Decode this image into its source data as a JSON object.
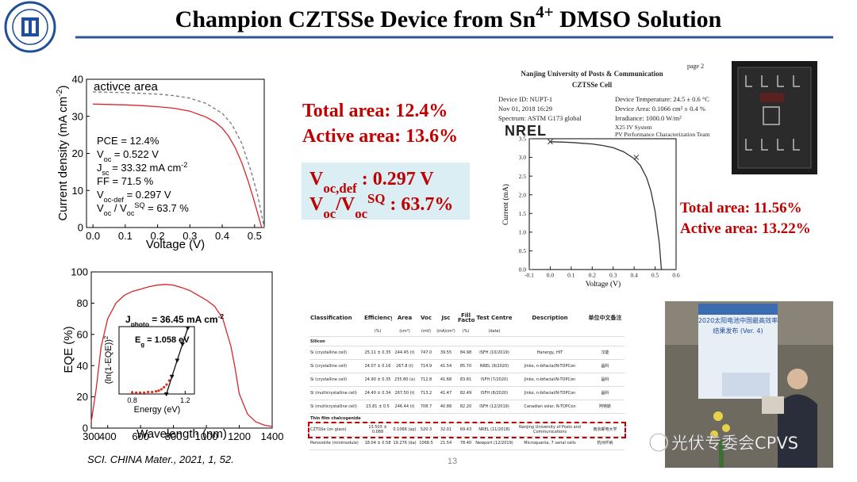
{
  "slide": {
    "title": [
      {
        "text": "Champion CZTSSe Device from Sn"
      },
      {
        "sup": "4+"
      },
      {
        "text": " DMSO Solution"
      }
    ],
    "total_area": "Total area: 12.4%",
    "active_area": "Active area: 13.6%",
    "voc_box": [
      [
        {
          "text": "V"
        },
        {
          "sub": "oc,def"
        },
        {
          "text": " :  0.297 V"
        }
      ],
      [
        {
          "text": "V"
        },
        {
          "sub": "oc"
        },
        {
          "text": "/V"
        },
        {
          "sub": "oc"
        },
        {
          "sup": "SQ"
        },
        {
          "text": " : 63.7%"
        }
      ]
    ],
    "right_results": [
      "Total area: 11.56%",
      "Active area: 13.22%"
    ],
    "nrel_header": {
      "page": "page 2",
      "institution": "Nanjing University of Posts & Communication",
      "cell": "CZTSSe Cell",
      "left": [
        "Device ID: NUPT-1",
        "Nov 01, 2018 16:29",
        "Spectrum: ASTM G173 global"
      ],
      "right": [
        "Device Temperature: 24.5 ± 0.6 °C",
        "Device Area: 0.1066 cm² ± 0.4 %",
        "Irradiance: 1000.0 W/m²"
      ],
      "logo": "NREL",
      "system": [
        "X25 IV System",
        "PV Performance Characterization Team"
      ]
    },
    "photo_screen": [
      "2020太阳电池中国最高效率",
      "结果发布 (Ver. 4)"
    ],
    "citation": "SCI. CHINA Mater., 2021, 1, 52.",
    "page_number": "13",
    "watermark": "光伏专委会CPVS"
  },
  "chart_data": [
    {
      "type": "line",
      "xlabel": [
        {
          "text": "Voltage (V)"
        }
      ],
      "ylabel": [
        {
          "text": "Current density (mA cm"
        },
        {
          "sup": "-2"
        },
        {
          "text": ")"
        }
      ],
      "xlim": [
        -0.02,
        0.53
      ],
      "xticks": [
        {
          "value": 0,
          "label": "0.0"
        },
        0.1,
        0.2,
        0.3,
        0.4,
        0.5
      ],
      "ylim": [
        0,
        40
      ],
      "yticks": [
        0,
        10,
        20,
        30,
        40
      ],
      "series": [
        {
          "name": "activce area",
          "color": "#777777",
          "dash": true,
          "mode": "lines",
          "x": [
            0,
            0.05,
            0.1,
            0.15,
            0.2,
            0.25,
            0.3,
            0.35,
            0.4,
            0.43,
            0.46,
            0.49,
            0.51,
            0.53
          ],
          "values": [
            36.6,
            36.5,
            36.4,
            36.2,
            36,
            35.6,
            34.9,
            33.5,
            30.8,
            27.8,
            22.8,
            15,
            8.5,
            0
          ]
        },
        {
          "color": "#d62728",
          "mode": "lines",
          "x": [
            0,
            0.05,
            0.1,
            0.15,
            0.2,
            0.25,
            0.3,
            0.35,
            0.38,
            0.4,
            0.42,
            0.44,
            0.46,
            0.48,
            0.5,
            0.522
          ],
          "values": [
            33.3,
            33.2,
            33.1,
            32.9,
            32.6,
            32.2,
            31.4,
            29.8,
            28.3,
            26.8,
            24.6,
            21.6,
            17.6,
            12.6,
            6.8,
            0
          ]
        }
      ],
      "annotations": [
        [
          {
            "text": "PCE = 12.4%"
          }
        ],
        [
          {
            "text": "V"
          },
          {
            "sub": "oc"
          },
          {
            "text": " = 0.522 V"
          }
        ],
        [
          {
            "text": "J"
          },
          {
            "sub": "sc"
          },
          {
            "text": " = 33.32 mA cm"
          },
          {
            "sup": "-2"
          }
        ],
        [
          {
            "text": "FF = 71.5 %"
          }
        ],
        [
          {
            "text": "V"
          },
          {
            "sub": "oc-def"
          },
          {
            "text": " = 0.297 V"
          }
        ],
        [
          {
            "text": "V"
          },
          {
            "sub": "oc"
          },
          {
            "text": " / V"
          },
          {
            "sub": "oc"
          },
          {
            "sup": "SQ"
          },
          {
            "text": " = 63.7 %"
          }
        ]
      ]
    },
    {
      "type": "line",
      "xlabel": [
        {
          "text": "Wavelength (nm)"
        }
      ],
      "ylabel": [
        {
          "text": "EQE (%)"
        }
      ],
      "xlim": [
        300,
        1400
      ],
      "xticks": [
        300,
        400,
        600,
        800,
        1000,
        1200,
        1400
      ],
      "ylim": [
        0,
        100
      ],
      "yticks": [
        0,
        20,
        40,
        60,
        80,
        100
      ],
      "series": [
        {
          "color": "#d62728",
          "mode": "lines",
          "x": [
            300,
            330,
            360,
            400,
            450,
            500,
            550,
            600,
            650,
            700,
            750,
            800,
            850,
            900,
            950,
            1000,
            1050,
            1100,
            1150,
            1175,
            1200,
            1250,
            1300,
            1350,
            1400
          ],
          "values": [
            4,
            25,
            52,
            70,
            80,
            85,
            87.5,
            89,
            90.5,
            91.5,
            92,
            91.5,
            90,
            88,
            85,
            82,
            78,
            70,
            52,
            38,
            22,
            9,
            4,
            2,
            1
          ]
        }
      ],
      "annotations": [
        [
          {
            "text": "J"
          },
          {
            "sub": "photo"
          },
          {
            "text": " = 36.45 mA cm"
          },
          {
            "sup": "-2"
          }
        ]
      ]
    },
    {
      "type": "line",
      "xlabel": [
        {
          "text": "Energy (eV)"
        }
      ],
      "ylabel": [
        {
          "text": "(ln(1-EQE))"
        },
        {
          "sup": "2"
        }
      ],
      "xlim": [
        0.7,
        1.27
      ],
      "xticks": [
        0.8,
        1.2
      ],
      "ylim": [
        0,
        1
      ],
      "yticks": [],
      "series": [
        {
          "color": "#e03020",
          "mode": "markers",
          "marker": "circle",
          "x": [
            0.8,
            0.83,
            0.86,
            0.89,
            0.92,
            0.95,
            0.98,
            1.0,
            1.02,
            1.04,
            1.06,
            1.08,
            1.1
          ],
          "values": [
            0.02,
            0.02,
            0.02,
            0.02,
            0.03,
            0.03,
            0.04,
            0.05,
            0.07,
            0.1,
            0.14,
            0.2,
            0.27
          ]
        },
        {
          "color": "#111111",
          "mode": "lines+markers",
          "marker": "triangle",
          "x": [
            1.058,
            1.1,
            1.14,
            1.18,
            1.22
          ],
          "values": [
            0,
            0.26,
            0.5,
            0.74,
            0.98
          ]
        }
      ],
      "annotations": [
        [
          {
            "text": "E"
          },
          {
            "sub": "g"
          },
          {
            "text": " = 1.058 eV"
          }
        ]
      ]
    },
    {
      "type": "line",
      "xlabel": [
        {
          "text": "Voltage (V)"
        }
      ],
      "ylabel": [
        {
          "text": "Current (mA)"
        }
      ],
      "xlim": [
        -0.1,
        0.6
      ],
      "xticks": [
        -0.1,
        {
          "value": 0,
          "label": "0.0"
        },
        0.1,
        0.2,
        0.3,
        0.4,
        0.5,
        0.6
      ],
      "ylim": [
        0,
        3.5
      ],
      "yticks": [
        {
          "value": 0,
          "label": "0.0"
        },
        0.5,
        {
          "value": 1,
          "label": "1.0"
        },
        1.5,
        {
          "value": 2,
          "label": "2.0"
        },
        2.5,
        {
          "value": 3,
          "label": "3.0"
        },
        3.5
      ],
      "series": [
        {
          "color": "#333333",
          "mode": "lines",
          "x": [
            0,
            0.05,
            0.1,
            0.15,
            0.2,
            0.25,
            0.3,
            0.35,
            0.4,
            0.43,
            0.46,
            0.48,
            0.5,
            0.52,
            0.53
          ],
          "values": [
            3.42,
            3.41,
            3.4,
            3.38,
            3.36,
            3.32,
            3.26,
            3.15,
            2.97,
            2.78,
            2.45,
            2.1,
            1.55,
            0.7,
            0
          ]
        },
        {
          "color": "#333333",
          "mode": "markers",
          "marker": "x",
          "x": [
            0,
            0.41
          ],
          "values": [
            3.42,
            3
          ]
        }
      ]
    }
  ],
  "table": {
    "header": [
      "Classification",
      "Efficiency",
      "Area",
      "Voc",
      "Jsc",
      "Fill Factor",
      "Test Centre",
      "Description",
      "单位中文备注"
    ],
    "units": [
      "(%)",
      "(cm²)",
      "(mV)",
      "(mA/cm²)",
      "(%)",
      "(date)"
    ],
    "sections": [
      {
        "name": "Silicon",
        "rows": [
          [
            "Si (crystalline cell)",
            "25.11 ± 0.35",
            "244.45 (t)",
            "747.0",
            "39.55",
            "84.98",
            "ISFH (10/2019)",
            "Hanergy, HIT",
            "汉能"
          ],
          [
            "Si (crystalline cell)",
            "24.07 ± 0.16",
            "267.8 (t)",
            "714.9",
            "41.54",
            "85.70",
            "NREL (8/2020)",
            "Jinko, n-bifacial/N-TOPCon",
            "晶科"
          ],
          [
            "Si (crystalline cell)",
            "24.90 ± 0.35",
            "235.80 (a)",
            "712.8",
            "41.68",
            "83.81",
            "ISFH (7/2020)",
            "Jinko, n-bifacial/N-TOPCon",
            "晶科"
          ],
          [
            "Si (multicrystalline cell)",
            "24.40 ± 0.34",
            "267.50 (t)",
            "713.2",
            "41.47",
            "82.49",
            "ISFH (8/2020)",
            "Jinko, n-bifacial/N-TOPCon",
            "晶科"
          ],
          [
            "Si (multicrystalline cell)",
            "23.81 ± 0.5",
            "246.44 (t)",
            "708.7",
            "40.88",
            "82.20",
            "ISFH (12/2019)",
            "Canadian solar, N-TOPCon",
            "阿特斯"
          ]
        ]
      },
      {
        "name": "Thin film chalcogenide",
        "rows": [
          [
            "CZTSSe (on glass)",
            "13.503 ± 0.088",
            "0.1066 (ap)",
            "520.3",
            "32.01",
            "69.43",
            "NREL (11/2018)",
            "Nanjing University of Posts and Communications",
            "南京邮电大学"
          ],
          [
            "Perovskite (minimodule)",
            "18.04 ± 0.58",
            "19.276 (da)",
            "1068.5",
            "21.54",
            "78.40",
            "Newport (12/2019)",
            "Microquanta, 7 serial cells",
            "杭州纤纳"
          ]
        ]
      }
    ]
  }
}
